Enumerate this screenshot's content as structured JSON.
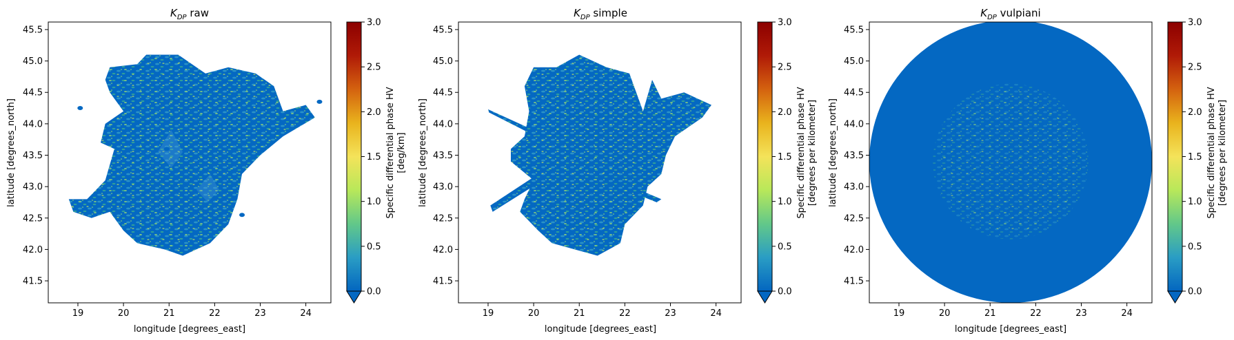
{
  "colorbar": {
    "ticks": [
      "0.0",
      "0.5",
      "1.0",
      "1.5",
      "2.0",
      "2.5",
      "3.0"
    ],
    "range": [
      0,
      3
    ],
    "extend": "min",
    "colormap": "HomeyerRainbow-like blue-green-yellow-red",
    "colors": [
      "#0366c0",
      "#2a9dc4",
      "#62c889",
      "#b8e85a",
      "#f4e35a",
      "#e9b31d",
      "#d4620f",
      "#b01a07",
      "#8c0000"
    ],
    "under_color": "#0468c2"
  },
  "chart_data": [
    {
      "type": "heatmap",
      "title_main": "K",
      "title_sub": "DP",
      "title_rest": " raw",
      "xlabel": "longitude [degrees_east]",
      "ylabel": "latitude [degrees_north]",
      "xlim": [
        18.35,
        24.55
      ],
      "ylim": [
        41.15,
        45.62
      ],
      "xticks": [
        "19",
        "20",
        "21",
        "22",
        "23",
        "24"
      ],
      "yticks": [
        "41.5",
        "42.0",
        "42.5",
        "43.0",
        "43.5",
        "44.0",
        "44.5",
        "45.0",
        "45.5"
      ],
      "colorbar_label_1": "Specific differential phase HV",
      "colorbar_label_2": "[deg/km]",
      "variant": "raw",
      "center": [
        21.5,
        43.4
      ],
      "outline": [
        [
          19.7,
          44.9
        ],
        [
          20.3,
          44.95
        ],
        [
          20.5,
          45.1
        ],
        [
          21.2,
          45.1
        ],
        [
          21.8,
          44.8
        ],
        [
          22.3,
          44.9
        ],
        [
          22.9,
          44.8
        ],
        [
          23.3,
          44.6
        ],
        [
          23.5,
          44.2
        ],
        [
          24.0,
          44.3
        ],
        [
          24.2,
          44.1
        ],
        [
          23.5,
          43.8
        ],
        [
          23.0,
          43.5
        ],
        [
          22.6,
          43.2
        ],
        [
          22.5,
          42.8
        ],
        [
          22.3,
          42.4
        ],
        [
          21.9,
          42.1
        ],
        [
          21.3,
          41.9
        ],
        [
          20.9,
          42.0
        ],
        [
          20.3,
          42.1
        ],
        [
          20.0,
          42.3
        ],
        [
          19.7,
          42.6
        ],
        [
          19.3,
          42.5
        ],
        [
          18.9,
          42.6
        ],
        [
          18.8,
          42.8
        ],
        [
          19.2,
          42.8
        ],
        [
          19.6,
          43.1
        ],
        [
          19.8,
          43.6
        ],
        [
          19.5,
          43.7
        ],
        [
          19.6,
          44.0
        ],
        [
          20.0,
          44.2
        ],
        [
          19.7,
          44.5
        ],
        [
          19.6,
          44.7
        ]
      ],
      "gaps": [
        [
          [
            20.75,
            43.55
          ],
          [
            21.05,
            43.9
          ],
          [
            21.3,
            43.55
          ],
          [
            21.05,
            43.3
          ]
        ],
        [
          [
            21.6,
            42.95
          ],
          [
            21.9,
            43.2
          ],
          [
            22.1,
            42.95
          ],
          [
            21.85,
            42.75
          ]
        ]
      ],
      "blobs": [
        [
          19.05,
          44.25
        ],
        [
          24.3,
          44.35
        ],
        [
          22.6,
          42.55
        ],
        [
          20.95,
          43.6
        ]
      ]
    },
    {
      "type": "heatmap",
      "title_main": "K",
      "title_sub": "DP",
      "title_rest": " simple",
      "xlabel": "longitude [degrees_east]",
      "ylabel": "latitude [degrees_north]",
      "xlim": [
        18.35,
        24.55
      ],
      "ylim": [
        41.15,
        45.62
      ],
      "xticks": [
        "19",
        "20",
        "21",
        "22",
        "23",
        "24"
      ],
      "yticks": [
        "41.5",
        "42.0",
        "42.5",
        "43.0",
        "43.5",
        "44.0",
        "44.5",
        "45.0",
        "45.5"
      ],
      "colorbar_label_1": "Specific differential phase HV",
      "colorbar_label_2": "[degrees per kilometer]",
      "variant": "simple",
      "center": [
        21.5,
        43.4
      ],
      "outline": [
        [
          20.0,
          44.9
        ],
        [
          20.5,
          44.9
        ],
        [
          21.0,
          45.1
        ],
        [
          21.6,
          44.9
        ],
        [
          22.1,
          44.8
        ],
        [
          22.4,
          44.2
        ],
        [
          22.6,
          44.7
        ],
        [
          22.8,
          44.4
        ],
        [
          23.3,
          44.5
        ],
        [
          23.9,
          44.3
        ],
        [
          23.7,
          44.1
        ],
        [
          23.1,
          43.8
        ],
        [
          22.9,
          43.5
        ],
        [
          22.8,
          43.2
        ],
        [
          22.5,
          43.0
        ],
        [
          22.4,
          42.7
        ],
        [
          22.0,
          42.4
        ],
        [
          21.9,
          42.1
        ],
        [
          21.4,
          41.9
        ],
        [
          20.9,
          42.0
        ],
        [
          20.4,
          42.1
        ],
        [
          20.1,
          42.3
        ],
        [
          19.7,
          42.6
        ],
        [
          19.8,
          42.8
        ],
        [
          20.0,
          43.1
        ],
        [
          19.5,
          43.4
        ],
        [
          19.5,
          43.6
        ],
        [
          19.8,
          43.8
        ],
        [
          19.9,
          44.2
        ],
        [
          19.8,
          44.6
        ]
      ],
      "streaks": [
        [
          [
            19.0,
            44.23
          ],
          [
            20.0,
            43.9
          ],
          [
            20.05,
            43.8
          ],
          [
            19.02,
            44.18
          ]
        ],
        [
          [
            19.1,
            42.6
          ],
          [
            20.2,
            43.1
          ],
          [
            20.1,
            43.2
          ],
          [
            19.05,
            42.7
          ]
        ],
        [
          [
            21.5,
            43.2
          ],
          [
            22.8,
            42.8
          ],
          [
            22.7,
            42.75
          ],
          [
            21.5,
            43.1
          ]
        ]
      ],
      "blobs": []
    },
    {
      "type": "heatmap",
      "title_main": "K",
      "title_sub": "DP",
      "title_rest": " vulpiani",
      "xlabel": "longitude [degrees_east]",
      "ylabel": "latitude [degrees_north]",
      "xlim": [
        18.35,
        24.55
      ],
      "ylim": [
        41.15,
        45.62
      ],
      "xticks": [
        "19",
        "20",
        "21",
        "22",
        "23",
        "24"
      ],
      "yticks": [
        "41.5",
        "42.0",
        "42.5",
        "43.0",
        "43.5",
        "44.0",
        "44.5",
        "45.0",
        "45.5"
      ],
      "colorbar_label_1": "Specific differential phase HV",
      "colorbar_label_2": "[degrees per kilometer]",
      "variant": "vulpiani",
      "center": [
        21.45,
        43.4
      ],
      "radius_deg": [
        3.1,
        2.25
      ],
      "outline": [],
      "blobs": []
    }
  ]
}
